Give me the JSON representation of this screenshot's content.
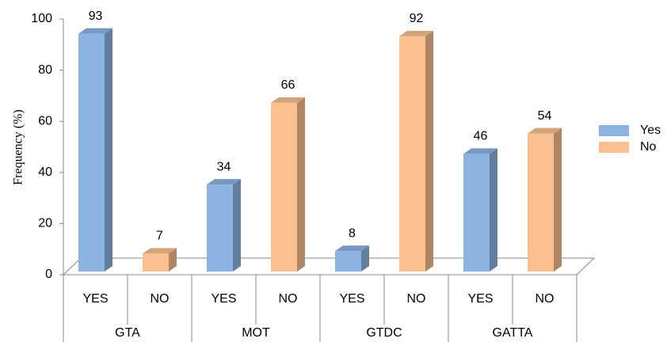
{
  "chart_data": {
    "type": "bar3d",
    "y_label": "Frequency (%)",
    "categories": [
      "GTA",
      "MOT",
      "GTDC",
      "GATTA"
    ],
    "sub_categories": [
      "YES",
      "NO"
    ],
    "series": [
      {
        "name": "Yes",
        "color": "#8db3e2",
        "values": [
          93,
          34,
          8,
          46
        ]
      },
      {
        "name": "No",
        "color": "#fac08f",
        "values": [
          7,
          66,
          92,
          54
        ]
      }
    ],
    "ylim": [
      0,
      100
    ],
    "yticks": [
      0,
      20,
      40,
      60,
      80,
      100
    ]
  }
}
